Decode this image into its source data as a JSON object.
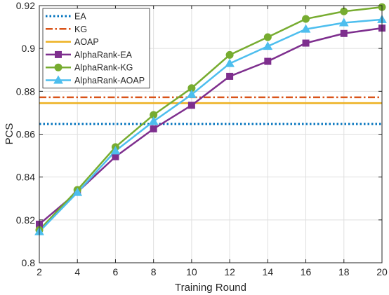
{
  "chart_data": {
    "type": "line",
    "title": "",
    "xlabel": "Training Round",
    "ylabel": "PCS",
    "xlim": [
      2,
      20
    ],
    "ylim": [
      0.8,
      0.92
    ],
    "xticks": [
      2,
      4,
      6,
      8,
      10,
      12,
      14,
      16,
      18,
      20
    ],
    "yticks": [
      0.8,
      0.82,
      0.84,
      0.86,
      0.88,
      0.9,
      0.92
    ],
    "ytick_labels": [
      "0.8",
      "0.82",
      "0.84",
      "0.86",
      "0.88",
      "0.9",
      "0.92"
    ],
    "grid": true,
    "legend_position": "top-left",
    "x": [
      2,
      4,
      6,
      8,
      10,
      12,
      14,
      16,
      18,
      20
    ],
    "series": [
      {
        "name": "EA",
        "values": [
          0.8648,
          0.8648,
          0.8648,
          0.8648,
          0.8648,
          0.8648,
          0.8648,
          0.8648,
          0.8648,
          0.8648
        ],
        "color": "#0072BD",
        "linestyle": "dotted",
        "marker": "none"
      },
      {
        "name": "KG",
        "values": [
          0.8772,
          0.8772,
          0.8772,
          0.8772,
          0.8772,
          0.8772,
          0.8772,
          0.8772,
          0.8772,
          0.8772
        ],
        "color": "#D95319",
        "linestyle": "dashdot",
        "marker": "none"
      },
      {
        "name": "AOAP",
        "values": [
          0.8745,
          0.8745,
          0.8745,
          0.8745,
          0.8745,
          0.8745,
          0.8745,
          0.8745,
          0.8745,
          0.8745
        ],
        "color": "#EDB120",
        "linestyle": "solid",
        "marker": "none"
      },
      {
        "name": "AlphaRank-EA",
        "values": [
          0.818,
          0.833,
          0.8495,
          0.8625,
          0.8735,
          0.887,
          0.894,
          0.9025,
          0.907,
          0.9095
        ],
        "color": "#7E2F8E",
        "linestyle": "solid",
        "marker": "square"
      },
      {
        "name": "AlphaRank-KG",
        "values": [
          0.8153,
          0.834,
          0.854,
          0.869,
          0.8815,
          0.897,
          0.9053,
          0.9138,
          0.9173,
          0.9193
        ],
        "color": "#77AC30",
        "linestyle": "solid",
        "marker": "circle"
      },
      {
        "name": "AlphaRank-AOAP",
        "values": [
          0.8145,
          0.8328,
          0.8522,
          0.866,
          0.8785,
          0.893,
          0.901,
          0.909,
          0.912,
          0.9135
        ],
        "color": "#4DBEEE",
        "linestyle": "solid",
        "marker": "triangle"
      }
    ]
  }
}
